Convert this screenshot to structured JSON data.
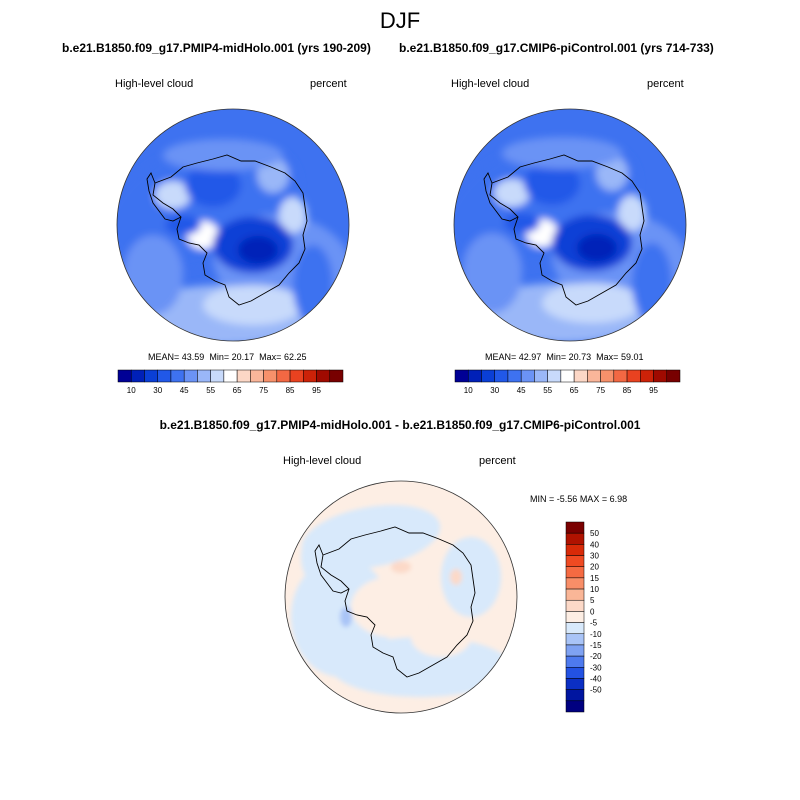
{
  "page": {
    "season": "DJF",
    "panels": [
      {
        "case_title": "b.e21.B1850.f09_g17.PMIP4-midHolo.001 (yrs 190-209)",
        "variable": "High-level cloud",
        "units": "percent",
        "stats": {
          "mean_label": "MEAN=",
          "mean": "43.59",
          "min_label": "Min=",
          "min": "20.17",
          "max_label": "Max=",
          "max": "62.25"
        }
      },
      {
        "case_title": "b.e21.B1850.f09_g17.CMIP6-piControl.001 (yrs 714-733)",
        "variable": "High-level cloud",
        "units": "percent",
        "stats": {
          "mean_label": "MEAN=",
          "mean": "42.97",
          "min_label": "Min=",
          "min": "20.73",
          "max_label": "Max=",
          "max": "59.01"
        }
      },
      {
        "case_title": "b.e21.B1850.f09_g17.PMIP4-midHolo.001 - b.e21.B1850.f09_g17.CMIP6-piControl.001",
        "variable": "High-level cloud",
        "units": "percent",
        "stats": {
          "min_label": "MIN =",
          "min": "-5.56",
          "max_label": "MAX =",
          "max": "6.98"
        }
      }
    ]
  },
  "chart_data": [
    {
      "type": "heatmap",
      "projection": "polar-stereographic-south",
      "colorbar": {
        "orientation": "horizontal",
        "tick_labels": [
          "10",
          "30",
          "45",
          "55",
          "65",
          "75",
          "85",
          "95"
        ],
        "colors": [
          "#000095",
          "#0020b8",
          "#0a3fd6",
          "#2158e8",
          "#3e72f0",
          "#6b93f5",
          "#9ab7f8",
          "#c8dafb",
          "#ffffff",
          "#fcd7c6",
          "#fab69a",
          "#f7916b",
          "#f36843",
          "#e94220",
          "#cc2208",
          "#a00a00",
          "#780000"
        ]
      },
      "field": "High-level cloud",
      "mean": 43.59,
      "min": 20.17,
      "max": 62.25
    },
    {
      "type": "heatmap",
      "projection": "polar-stereographic-south",
      "colorbar": {
        "orientation": "horizontal",
        "tick_labels": [
          "10",
          "30",
          "45",
          "55",
          "65",
          "75",
          "85",
          "95"
        ],
        "colors": [
          "#000095",
          "#0020b8",
          "#0a3fd6",
          "#2158e8",
          "#3e72f0",
          "#6b93f5",
          "#9ab7f8",
          "#c8dafb",
          "#ffffff",
          "#fcd7c6",
          "#fab69a",
          "#f7916b",
          "#f36843",
          "#e94220",
          "#cc2208",
          "#a00a00",
          "#780000"
        ]
      },
      "field": "High-level cloud",
      "mean": 42.97,
      "min": 20.73,
      "max": 59.01
    },
    {
      "type": "heatmap",
      "projection": "polar-stereographic-south",
      "colorbar": {
        "orientation": "vertical",
        "tick_labels": [
          "50",
          "40",
          "30",
          "20",
          "15",
          "10",
          "5",
          "0",
          "-5",
          "-10",
          "-15",
          "-20",
          "-30",
          "-40",
          "-50"
        ],
        "colors": [
          "#7a0000",
          "#b01200",
          "#d82a08",
          "#ef4a22",
          "#f56a42",
          "#f88e68",
          "#fab697",
          "#fcd9c8",
          "#fdeee4",
          "#d8e9fb",
          "#a9c4f7",
          "#7fa2f2",
          "#4e7aee",
          "#2352e3",
          "#0b2fc4",
          "#0015a0",
          "#000080"
        ]
      },
      "field": "High-level cloud difference",
      "min": -5.56,
      "max": 6.98
    }
  ]
}
